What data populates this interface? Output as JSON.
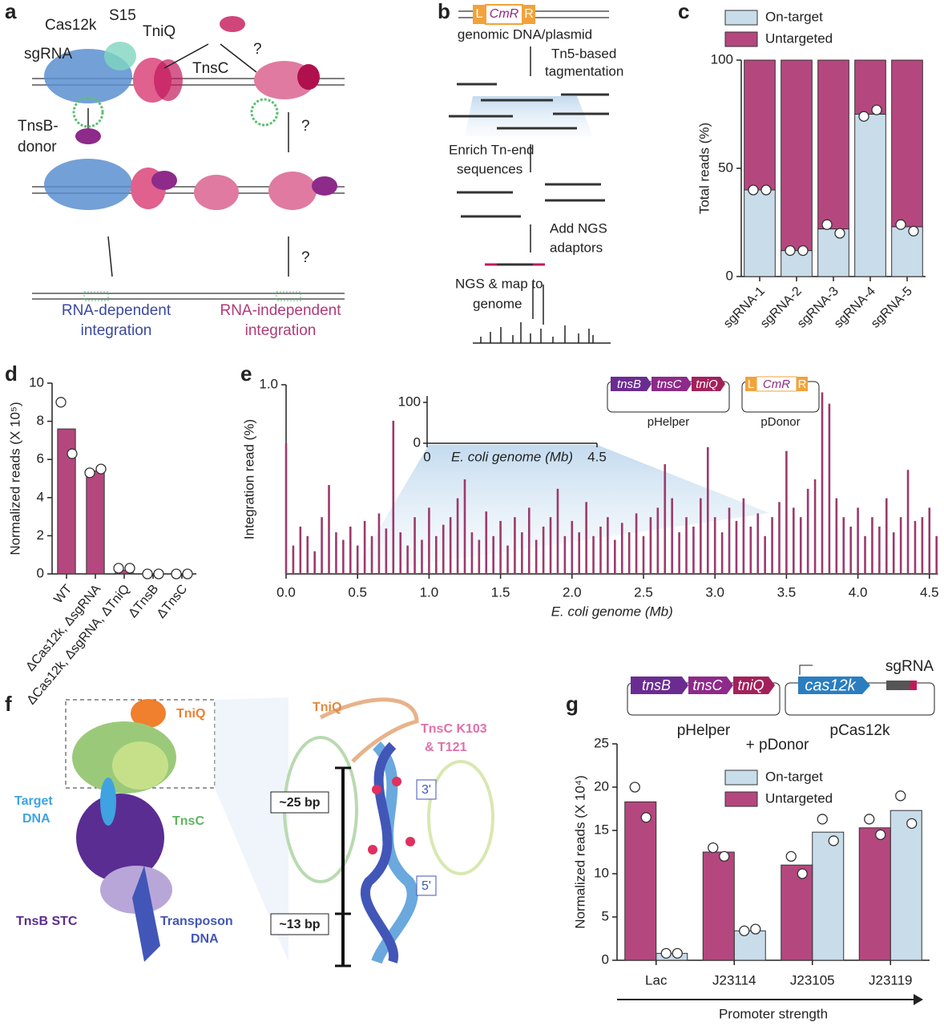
{
  "panel_letters": [
    "a",
    "b",
    "c",
    "d",
    "e",
    "f",
    "g"
  ],
  "panel_a": {
    "labels": [
      "sgRNA",
      "Cas12k",
      "S15",
      "TniQ",
      "TnsC",
      "?",
      "TnsB-",
      "donor",
      "?",
      "?",
      "RNA-dependent",
      "integration",
      "RNA-independent",
      "integration"
    ]
  },
  "panel_b": {
    "labels": [
      "L",
      "CmR",
      "R",
      "genomic DNA/plasmid",
      "Tn5-based",
      "tagmentation",
      "Enrich Tn-end",
      "sequences",
      "Add NGS",
      "adaptors",
      "NGS & map to",
      "genome"
    ]
  },
  "panel_f": {
    "labels": [
      "TniQ",
      "Target",
      "DNA",
      "TnsC",
      "TnsB STC",
      "Transposon",
      "DNA",
      "TniQ",
      "TnsC K103",
      "& T121",
      "3'",
      "5'",
      "~25 bp",
      "~13 bp"
    ]
  },
  "chart_data": [
    {
      "type": "stacked_bar",
      "ylabel": "Total reads (%)",
      "categories": [
        "sgRNA-1",
        "sgRNA-2",
        "sgRNA-3",
        "sgRNA-4",
        "sgRNA-5"
      ],
      "series": [
        {
          "name": "On-target",
          "color": "#c9dcea",
          "values": [
            40,
            12,
            22,
            75,
            23
          ],
          "points": [
            [
              40,
              40
            ],
            [
              12,
              12
            ],
            [
              24,
              20
            ],
            [
              74,
              77
            ],
            [
              24,
              21
            ]
          ]
        },
        {
          "name": "Untargeted",
          "color": "#b5477f",
          "values": [
            60,
            88,
            78,
            25,
            77
          ]
        }
      ],
      "ylim": [
        0,
        100
      ],
      "yticks": [
        0,
        50,
        100
      ],
      "legend": "top"
    },
    {
      "type": "bar",
      "ylabel": "Normalized reads (X 10⁵)",
      "categories": [
        "WT",
        "ΔCas12k, ΔsgRNA",
        "ΔCas12k, ΔsgRNA, ΔTniQ",
        "ΔTnsB",
        "ΔTnsC"
      ],
      "values": [
        7.6,
        5.4,
        0.2,
        0.02,
        0.02
      ],
      "points": [
        [
          9.0,
          6.3
        ],
        [
          5.3,
          5.5
        ],
        [
          0.3,
          0.3
        ],
        [
          0,
          0
        ],
        [
          0,
          0
        ]
      ],
      "color": "#b5477f",
      "ylim": [
        0,
        10
      ],
      "yticks": [
        0,
        2,
        4,
        6,
        8,
        10
      ]
    },
    {
      "type": "spike",
      "ylabel": "Integration read (%)",
      "xlabel": "E. coli genome (Mb)",
      "color": "#9c3a6c",
      "x": [
        0.0,
        0.05,
        0.1,
        0.15,
        0.2,
        0.25,
        0.3,
        0.35,
        0.4,
        0.45,
        0.5,
        0.55,
        0.6,
        0.65,
        0.7,
        0.75,
        0.8,
        0.85,
        0.9,
        0.95,
        1.0,
        1.05,
        1.1,
        1.15,
        1.2,
        1.25,
        1.3,
        1.35,
        1.4,
        1.45,
        1.5,
        1.55,
        1.6,
        1.65,
        1.7,
        1.75,
        1.8,
        1.85,
        1.9,
        1.95,
        2.0,
        2.05,
        2.1,
        2.15,
        2.2,
        2.25,
        2.3,
        2.35,
        2.4,
        2.45,
        2.5,
        2.55,
        2.6,
        2.65,
        2.7,
        2.75,
        2.8,
        2.85,
        2.9,
        2.95,
        3.0,
        3.05,
        3.1,
        3.15,
        3.2,
        3.25,
        3.3,
        3.35,
        3.4,
        3.45,
        3.5,
        3.55,
        3.6,
        3.65,
        3.7,
        3.75,
        3.8,
        3.85,
        3.9,
        3.95,
        4.0,
        4.05,
        4.1,
        4.15,
        4.2,
        4.25,
        4.3,
        4.35,
        4.4,
        4.45,
        4.5,
        4.55
      ],
      "values": [
        0.69,
        0.15,
        0.25,
        0.2,
        0.12,
        0.3,
        0.47,
        0.22,
        0.18,
        0.25,
        0.15,
        0.28,
        0.2,
        0.32,
        0.24,
        0.81,
        0.22,
        0.15,
        0.3,
        0.18,
        0.35,
        0.2,
        0.26,
        0.3,
        0.4,
        0.5,
        0.22,
        0.18,
        0.33,
        0.2,
        0.28,
        0.15,
        0.3,
        0.22,
        0.35,
        0.18,
        0.25,
        0.3,
        0.45,
        0.2,
        0.28,
        0.22,
        0.38,
        0.2,
        0.25,
        0.3,
        0.18,
        0.27,
        0.22,
        0.32,
        0.2,
        0.3,
        0.35,
        0.58,
        0.4,
        0.22,
        0.3,
        0.25,
        0.4,
        0.67,
        0.3,
        0.22,
        0.35,
        0.28,
        0.4,
        0.25,
        0.32,
        0.2,
        0.3,
        0.38,
        0.65,
        0.35,
        0.3,
        0.45,
        0.5,
        0.96,
        0.9,
        0.4,
        0.3,
        0.25,
        0.35,
        0.2,
        0.3,
        0.25,
        0.4,
        0.22,
        0.3,
        0.55,
        0.28,
        0.3,
        0.35,
        0.2
      ],
      "xlim": [
        0,
        4.56
      ],
      "xticks": [
        {
          "value": 0,
          "label": "0.0"
        },
        0.5,
        {
          "value": 1,
          "label": "1.0"
        },
        1.5,
        {
          "value": 2,
          "label": "2.0"
        },
        2.5,
        {
          "value": 3,
          "label": "3.0"
        },
        3.5,
        {
          "value": 4,
          "label": "4.0"
        },
        4.5
      ],
      "ylim": [
        0,
        1
      ],
      "yticks": [
        {
          "value": 1,
          "label": "1.0"
        }
      ],
      "inset": {
        "xlabel": "E. coli genome (Mb)",
        "xlim": [
          0,
          4.5
        ],
        "xticks": [
          0,
          4.5
        ],
        "ylim": [
          0,
          100
        ],
        "yticks": [
          0,
          100
        ]
      },
      "annotations": [
        "tnsB",
        "tnsC",
        "tniQ",
        "pHelper",
        "L",
        "CmR",
        "R",
        "pDonor"
      ]
    },
    {
      "type": "grouped_bar",
      "ylabel": "Normalized reads (X 10⁴)",
      "xlabel": "Promoter strength",
      "categories": [
        "Lac",
        "J23114",
        "J23105",
        "J23119"
      ],
      "series": [
        {
          "name": "On-target",
          "color": "#c9dcea",
          "values": [
            0.8,
            3.4,
            14.8,
            17.3
          ],
          "points": [
            [
              0.8,
              0.8
            ],
            [
              3.4,
              3.6
            ],
            [
              16.3,
              13.8
            ],
            [
              19,
              15.8
            ]
          ]
        },
        {
          "name": "Untargeted",
          "color": "#b5477f",
          "values": [
            18.3,
            12.5,
            11,
            15.3
          ],
          "points": [
            [
              20,
              16.5
            ],
            [
              13,
              12
            ],
            [
              12,
              10
            ],
            [
              16.3,
              14.5
            ]
          ]
        }
      ],
      "ylim": [
        0,
        25
      ],
      "yticks": [
        0,
        5,
        10,
        15,
        20,
        25
      ],
      "legend": "center",
      "annotations": [
        "tnsB",
        "tnsC",
        "tniQ",
        "cas12k",
        "sgRNA",
        "pHelper",
        "pCas12k",
        "+ pDonor"
      ]
    }
  ]
}
